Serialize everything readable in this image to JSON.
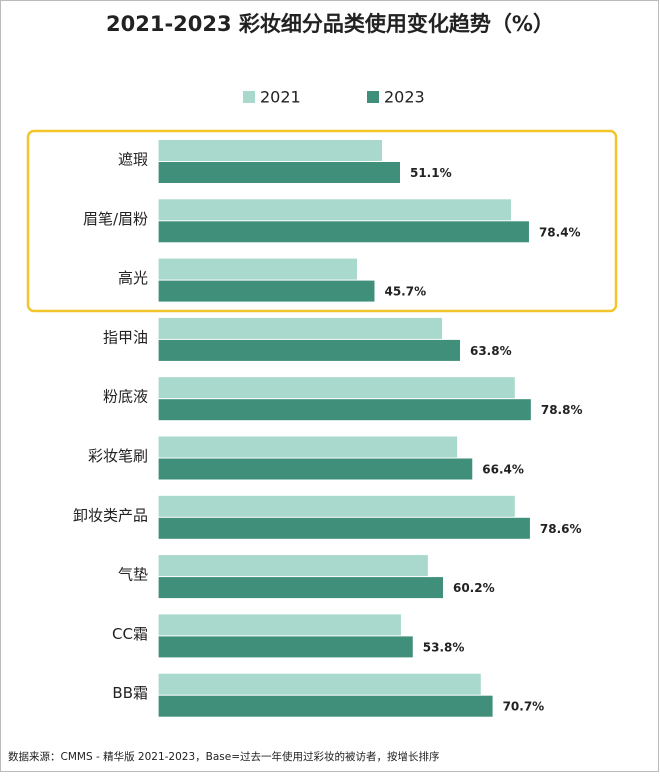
{
  "chart_data": {
    "type": "hbar",
    "title": "2021-2023 彩妆细分品类使用变化趋势（%）",
    "categories": [
      "遮瑕",
      "眉笔/眉粉",
      "高光",
      "指甲油",
      "粉底液",
      "彩妆笔刷",
      "卸妆类产品",
      "气垫",
      "CC霜",
      "BB霜"
    ],
    "series": [
      {
        "name": "2021",
        "color": "#a9d9cc",
        "values": [
          47.3,
          74.6,
          42.0,
          60.0,
          75.4,
          63.2,
          75.4,
          57.0,
          51.3,
          68.2
        ]
      },
      {
        "name": "2023",
        "color": "#3f8f7b",
        "values": [
          51.1,
          78.4,
          45.7,
          63.8,
          78.8,
          66.4,
          78.6,
          60.2,
          53.8,
          70.7
        ],
        "value_labels": [
          "51.1%",
          "78.4%",
          "45.7%",
          "63.8%",
          "78.8%",
          "66.4%",
          "78.6%",
          "60.2%",
          "53.8%",
          "70.7%"
        ]
      }
    ],
    "xlim": [
      0,
      100
    ],
    "legend": "top",
    "source": "数据来源：CMMS - 精华版 2021-2023，Base=过去一年使用过彩妆的被访者，按增长排序"
  }
}
